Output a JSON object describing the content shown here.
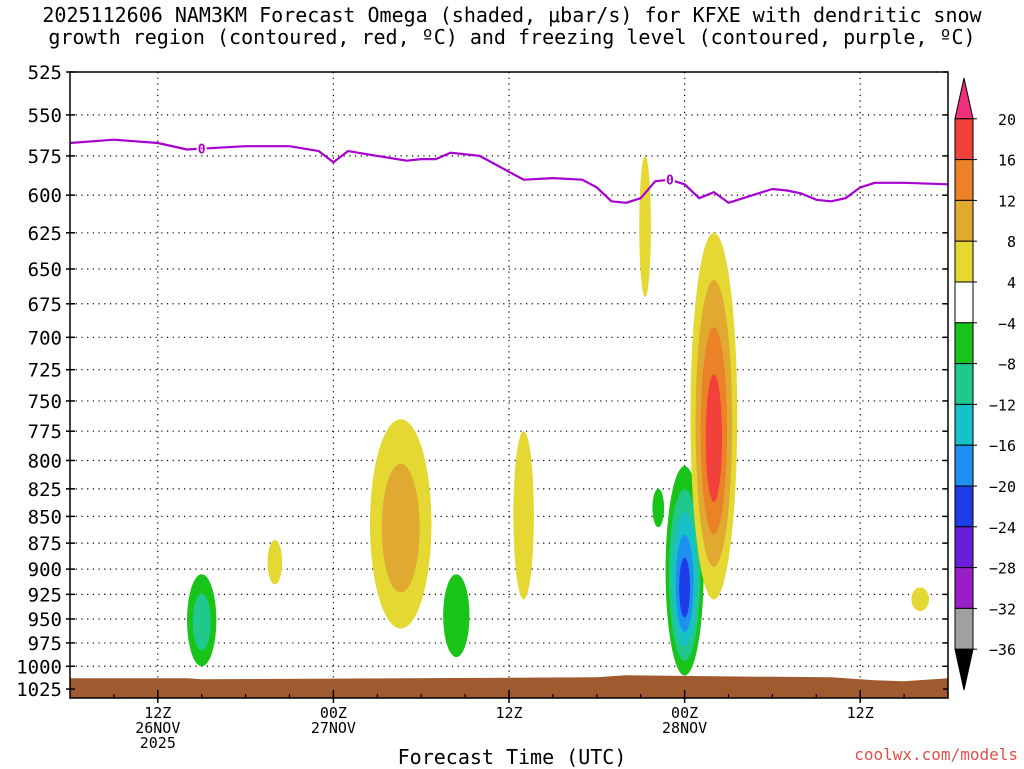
{
  "title": {
    "line1": "2025112606 NAM3KM Forecast Omega (shaded, μbar/s) for KFXE with dendritic snow",
    "line2": "growth region (contoured, red, ºC) and freezing level (contoured, purple, ºC)"
  },
  "xlabel": "Forecast Time (UTC)",
  "credit": "coolwx.com/models",
  "chart_data": {
    "type": "heatmap",
    "x_unit": "forecast hour from 2025-11-26 06Z",
    "x_range": [
      0,
      60
    ],
    "y_scale": "pressure (log-like, inverted)",
    "y_ticks": [
      525,
      550,
      575,
      600,
      625,
      650,
      675,
      700,
      725,
      750,
      775,
      800,
      825,
      850,
      875,
      900,
      925,
      950,
      975,
      1000,
      1025
    ],
    "y_range": [
      525,
      1035
    ],
    "x_ticks": [
      {
        "hour": 6,
        "lines": [
          "12Z",
          "26NOV",
          "2025"
        ]
      },
      {
        "hour": 18,
        "lines": [
          "00Z",
          "27NOV"
        ]
      },
      {
        "hour": 30,
        "lines": [
          "12Z"
        ]
      },
      {
        "hour": 42,
        "lines": [
          "00Z",
          "28NOV"
        ]
      },
      {
        "hour": 54,
        "lines": [
          "12Z"
        ]
      }
    ],
    "grid": true,
    "colorbar": {
      "labels": [
        "20",
        "16",
        "12",
        "8",
        "4",
        "−4",
        "−8",
        "−12",
        "−16",
        "−20",
        "−24",
        "−28",
        "−32",
        "−36"
      ],
      "colors": [
        "#f0307a",
        "#f2403a",
        "#ec8228",
        "#e0aa30",
        "#e6d832",
        "#ffffff",
        "#18c418",
        "#20c88c",
        "#18c0c8",
        "#1e90f0",
        "#1e3ce8",
        "#6a1edc",
        "#9a1ec8",
        "#a0a0a0",
        "#000000"
      ]
    },
    "freezing_level": {
      "color": "#a800d0",
      "label": "0",
      "label_hours": [
        9,
        41
      ],
      "points": [
        [
          0,
          567
        ],
        [
          3,
          565
        ],
        [
          6,
          567
        ],
        [
          8,
          571
        ],
        [
          10,
          570
        ],
        [
          12,
          569
        ],
        [
          15,
          569
        ],
        [
          17,
          572
        ],
        [
          18,
          579
        ],
        [
          19,
          572
        ],
        [
          21,
          575
        ],
        [
          23,
          578
        ],
        [
          24,
          577
        ],
        [
          25,
          577
        ],
        [
          26,
          573
        ],
        [
          28,
          575
        ],
        [
          30,
          585
        ],
        [
          31,
          590
        ],
        [
          33,
          589
        ],
        [
          35,
          590
        ],
        [
          36,
          595
        ],
        [
          37,
          604
        ],
        [
          38,
          605
        ],
        [
          39,
          602
        ],
        [
          40,
          591
        ],
        [
          41,
          590
        ],
        [
          42,
          593
        ],
        [
          43,
          602
        ],
        [
          44,
          598
        ],
        [
          45,
          605
        ],
        [
          46,
          602
        ],
        [
          47,
          599
        ],
        [
          48,
          596
        ],
        [
          49,
          597
        ],
        [
          50,
          599
        ],
        [
          51,
          603
        ],
        [
          52,
          604
        ],
        [
          53,
          602
        ],
        [
          54,
          595
        ],
        [
          55,
          592
        ],
        [
          57,
          592
        ],
        [
          60,
          593
        ]
      ]
    },
    "omega_areas": [
      {
        "hour": 9,
        "p_top": 905,
        "p_bot": 1000,
        "width_h": 1.0,
        "value": -10
      },
      {
        "hour": 14,
        "p_top": 872,
        "p_bot": 915,
        "width_h": 0.5,
        "value": 5
      },
      {
        "hour": 22.6,
        "p_top": 765,
        "p_bot": 960,
        "width_h": 2.1,
        "value": 9
      },
      {
        "hour": 26.4,
        "p_top": 905,
        "p_bot": 990,
        "width_h": 0.9,
        "value": -8
      },
      {
        "hour": 31,
        "p_top": 775,
        "p_bot": 930,
        "width_h": 0.7,
        "value": 5
      },
      {
        "hour": 39.3,
        "p_top": 575,
        "p_bot": 670,
        "width_h": 0.4,
        "value": 5
      },
      {
        "hour": 40.2,
        "p_top": 825,
        "p_bot": 860,
        "width_h": 0.4,
        "value": -7
      },
      {
        "hour": 42,
        "p_top": 805,
        "p_bot": 1010,
        "width_h": 1.3,
        "value": -22
      },
      {
        "hour": 44,
        "p_top": 625,
        "p_bot": 930,
        "width_h": 1.6,
        "value": 17
      },
      {
        "hour": 58.1,
        "p_top": 918,
        "p_bot": 942,
        "width_h": 0.6,
        "value": 5
      }
    ],
    "terrain": {
      "color": "#a05a30",
      "p_top": 1012
    }
  }
}
